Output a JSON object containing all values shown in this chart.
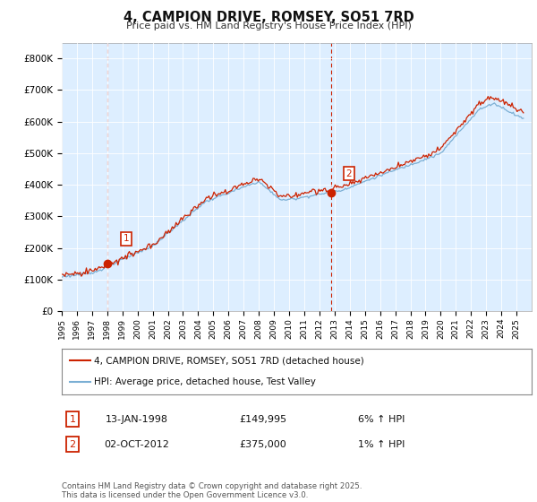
{
  "title": "4, CAMPION DRIVE, ROMSEY, SO51 7RD",
  "subtitle": "Price paid vs. HM Land Registry's House Price Index (HPI)",
  "ylim": [
    0,
    850000
  ],
  "yticks": [
    0,
    100000,
    200000,
    300000,
    400000,
    500000,
    600000,
    700000,
    800000
  ],
  "ytick_labels": [
    "£0",
    "£100K",
    "£200K",
    "£300K",
    "£400K",
    "£500K",
    "£600K",
    "£700K",
    "£800K"
  ],
  "hpi_color": "#7bafd4",
  "price_color": "#cc2200",
  "vline_color": "#cc2200",
  "sale1_date": 1998.04,
  "sale1_price": 149995,
  "sale2_date": 2012.75,
  "sale2_price": 375000,
  "legend_line1": "4, CAMPION DRIVE, ROMSEY, SO51 7RD (detached house)",
  "legend_line2": "HPI: Average price, detached house, Test Valley",
  "table_row1_num": "1",
  "table_row1_date": "13-JAN-1998",
  "table_row1_price": "£149,995",
  "table_row1_hpi": "6% ↑ HPI",
  "table_row2_num": "2",
  "table_row2_date": "02-OCT-2012",
  "table_row2_price": "£375,000",
  "table_row2_hpi": "1% ↑ HPI",
  "footer": "Contains HM Land Registry data © Crown copyright and database right 2025.\nThis data is licensed under the Open Government Licence v3.0.",
  "bg_color": "#ffffff",
  "chart_bg_color": "#ddeeff",
  "grid_color": "#ffffff"
}
